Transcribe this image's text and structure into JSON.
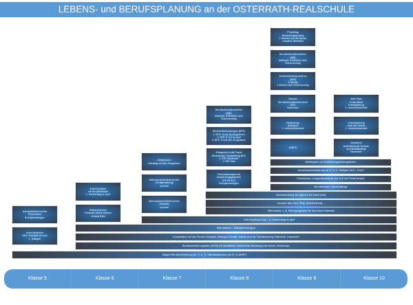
{
  "title": "LEBENS- und BERUFSPLANUNG an der OSTERRATH-REALSCHULE",
  "klassen": [
    "Klasse 5",
    "Klasse 6",
    "Klasse 7",
    "Klasse 8",
    "Klasse 9",
    "Klasse 10"
  ],
  "boxes": {
    "k5": [
      "Haushaltsführerschein\nPrima Klima\nSchuljahresbeginn",
      "Unterrichtsreihe\nMein Traumjob (Kunst)\n1. Halbjahr"
    ],
    "k6": [
      "Erste Kontakte\nmit der Arbeitswelt\n1. Donnerstag im April",
      "Stationenlernen\nEntdecke meine Stärken\nAnfang März"
    ],
    "k7": [
      "Jobparcours\nDienstag vor den Zeugnissen",
      "Nähmaschinenführerschein\n(Textilgestaltung)\nepochal",
      "Bohrmaschinenführerschein\n(Technik)\nepochal"
    ],
    "k8": [
      "Berufsinformationsbörse\n(BIB)\nMittwoch, 5 Wochen nach\nRosenmontag",
      "Berufsfelderkundungen (BFE)\n1. BFE: Di vor Hj-Zeugnissen\n2. BFE: 4. Do im April\n3. BFE: Di vor den Zeugnissen",
      "Erfolgreich in die Praxis\nBewerbung + Auswertung BFE\n1. EIP: November\n2. EIP: Mai",
      "Potenzialanalyse mit\nAuswertungsgespräch\n(PA mit AG)\nSchuljahresbeginn"
    ],
    "k9": [
      "Projekttag\nBewerbungstraining\n7 Wochen vor der Messe\nvocatium Rheinfeld",
      "Berufsinformationsbörse\n(BIB)\nMittwoch, 5 Wochen nach\nRosenmontag",
      "Schülerbetriebspraktikum\n(SBP)\n3-wöchig\n1 Woche nach Rosenmontag",
      "Besuch\nBerufsinformationszentrum\n(BIZ)\nNovember",
      "Bewerbung\n(Deutsch)\n1. Unterrichtseinheit",
      "MINKO"
    ],
    "k10": [
      "Mein Start\nin den Beruf\nFinanzplanung\n1. Unterrichtseinheit",
      "Lebensplanung\nnach der Schule\n1. Unterrichtseinheit",
      "Infoabend\nweiterführende Schulen\nund Berufskollegs\nNovember"
    ]
  },
  "bars": [
    "Weitergabe von Ausbildungsplatzangeboten",
    "Anschlussvereinbarung ab Kl. 9, 2. Halbjahr (AV) + ExbO",
    "Praxiskurse, Langzeitpraktikum (für SuS mit Förderbedarf)",
    "Berufsbörsen, Speeddatings",
    "Berufsberatung der Agentur für Arbeit (AfA)",
    "vernetzt. Abs. Nee Shop (Schülerfirma) ...",
    "Elternarbeit, z. B. Elternprogramm für den Kreis Gütersloh",
    "Girls Day/Boys Day – 4. Donnerstag im April",
    "Elternabend – Schuljahresbeginn",
    "Kooperation mit den Firmen Verpalok, Westag & Getalit, Nobilia und der Tischlerinnung Gütersloh, Hanomeer",
    "Berufsorientierungsbüro (BOB) mit Mediathek, individueller Beratung und versch. Workshops",
    "Mappe Berufsorientierung (Kl. 5, 6, 7) / Berufswahlpass (ab Kl. 8) (BWP)"
  ],
  "colors": {
    "accent": "#5b9bd5",
    "box_dark": "#353c47",
    "box_light": "#3578b8"
  }
}
